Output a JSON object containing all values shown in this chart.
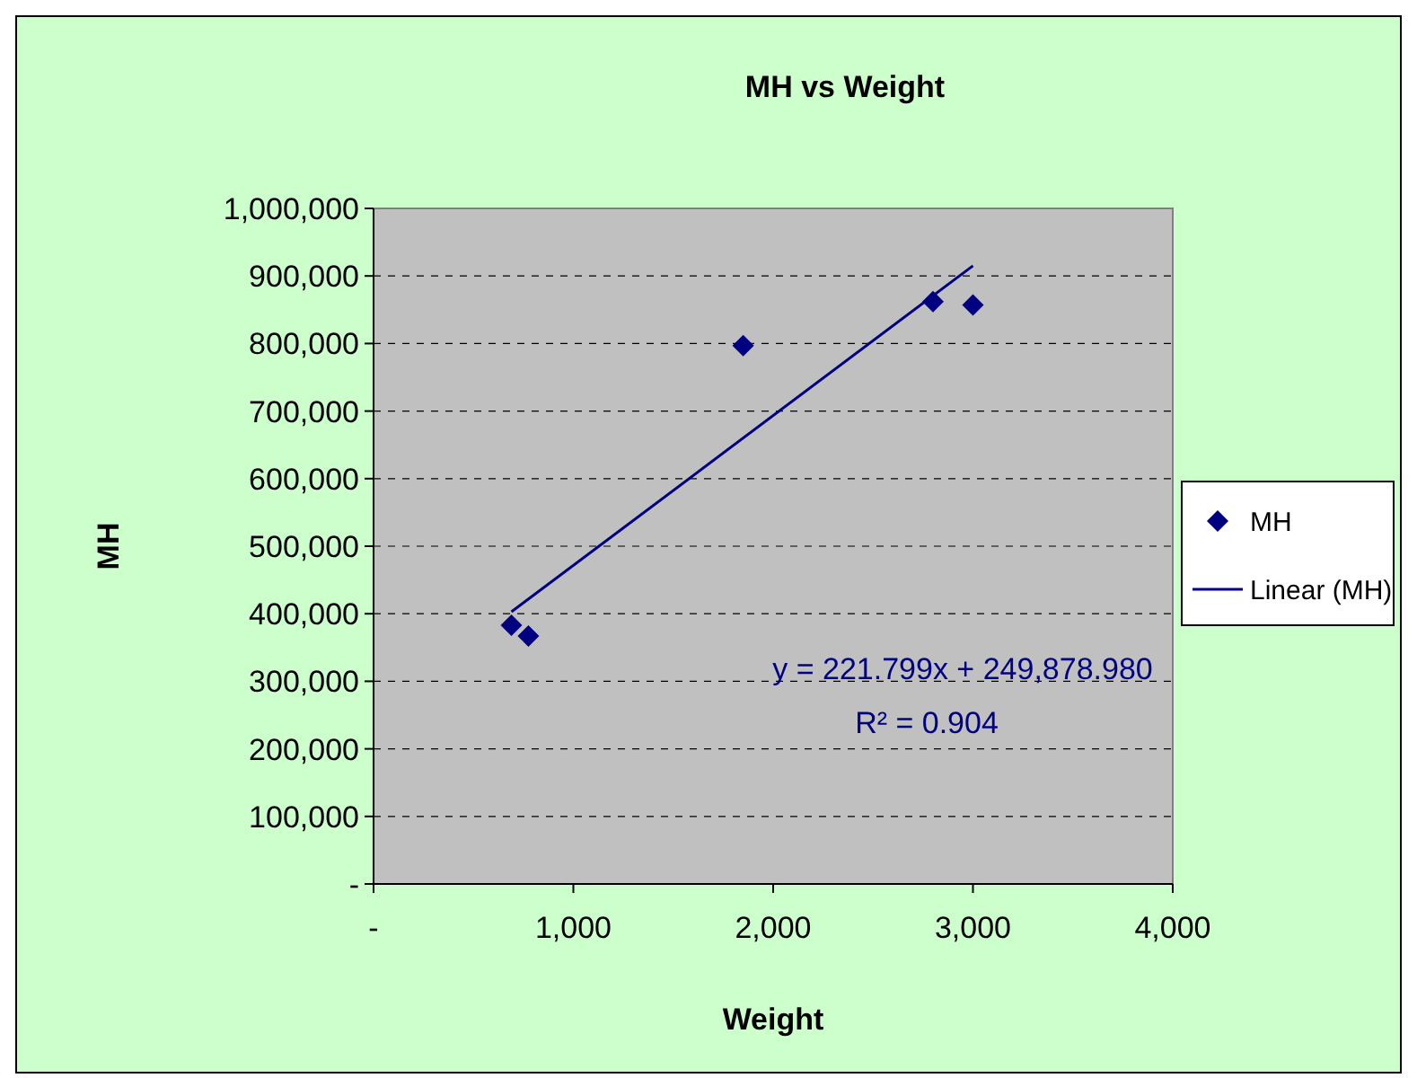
{
  "chart_data": {
    "type": "scatter",
    "title": "MH vs Weight",
    "xlabel": "Weight",
    "ylabel": "MH",
    "xlim": [
      0,
      4000
    ],
    "xticks": [
      {
        "value": 0,
        "label": "-"
      },
      {
        "value": 1000,
        "label": "1,000"
      },
      {
        "value": 2000,
        "label": "2,000"
      },
      {
        "value": 3000,
        "label": "3,000"
      },
      {
        "value": 4000,
        "label": "4,000"
      }
    ],
    "ylim": [
      0,
      1000000
    ],
    "yticks": [
      {
        "value": 0,
        "label": "-"
      },
      {
        "value": 100000,
        "label": "100,000"
      },
      {
        "value": 200000,
        "label": "200,000"
      },
      {
        "value": 300000,
        "label": "300,000"
      },
      {
        "value": 400000,
        "label": "400,000"
      },
      {
        "value": 500000,
        "label": "500,000"
      },
      {
        "value": 600000,
        "label": "600,000"
      },
      {
        "value": 700000,
        "label": "700,000"
      },
      {
        "value": 800000,
        "label": "800,000"
      },
      {
        "value": 900000,
        "label": "900,000"
      },
      {
        "value": 1000000,
        "label": "1,000,000"
      }
    ],
    "grid": "y",
    "legend": "right",
    "series": [
      {
        "name": "MH",
        "color": "#000080",
        "marker": "diamond",
        "x": [
          690,
          775,
          1850,
          2800,
          3000
        ],
        "values": [
          383000,
          367000,
          797000,
          862000,
          857000
        ]
      },
      {
        "name": "Linear (MH)",
        "type": "line",
        "color": "#000080",
        "line_style": "solid",
        "x": [
          690,
          3000
        ],
        "values": [
          403000,
          915000
        ]
      }
    ],
    "annotations": [
      "y = 221.799x + 249,878.980",
      "R² = 0.904"
    ]
  }
}
